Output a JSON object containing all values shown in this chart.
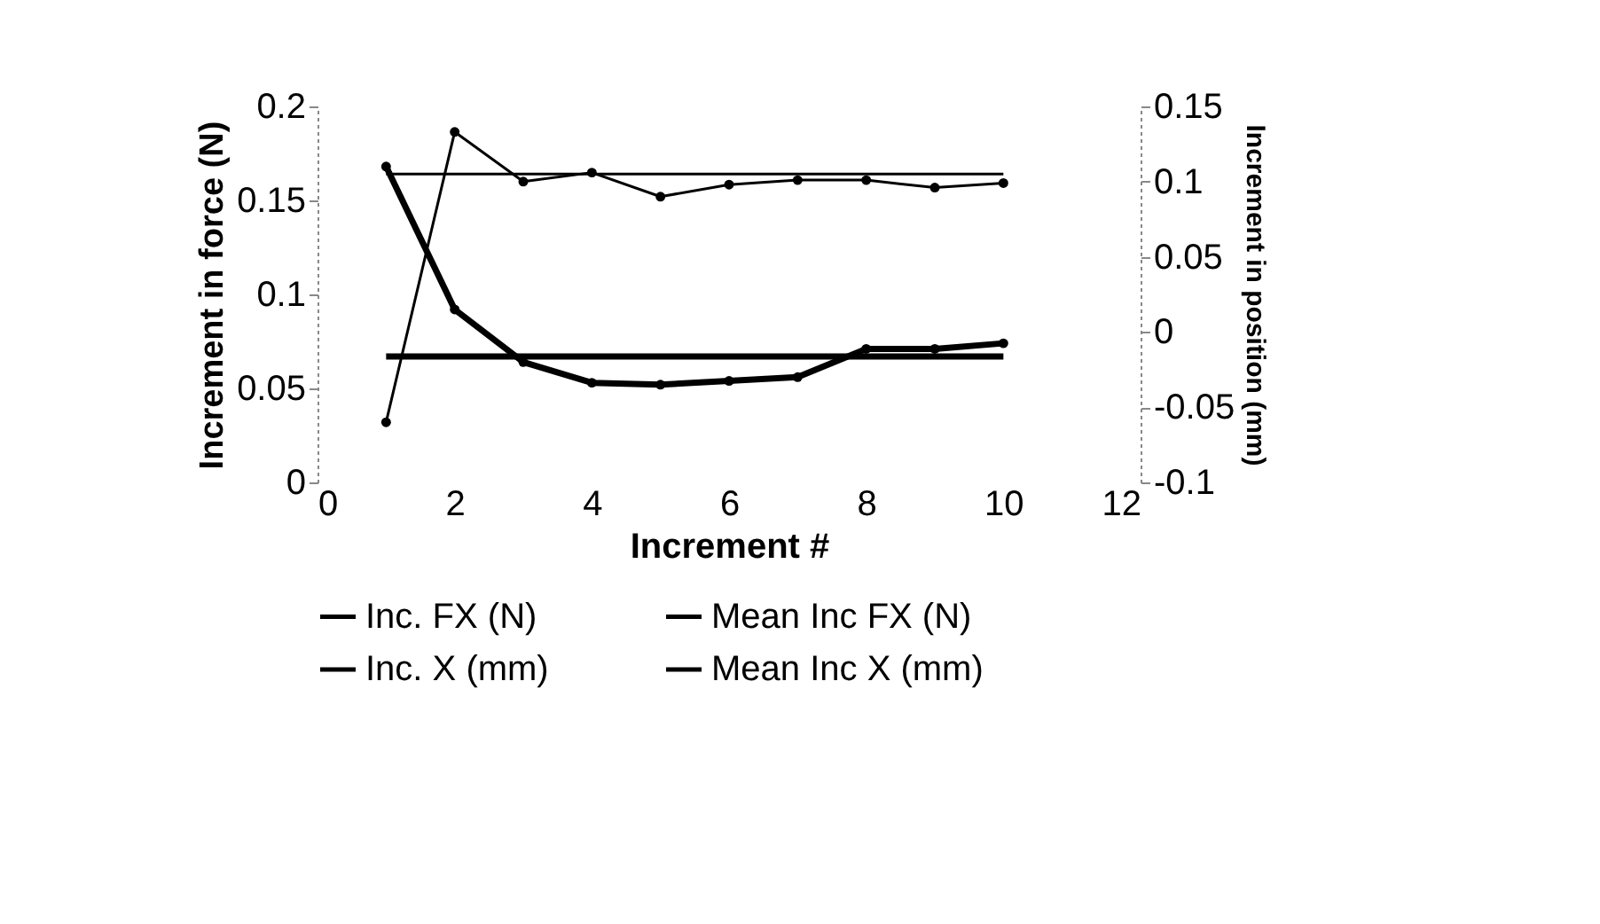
{
  "chart_data": {
    "type": "line",
    "xlabel": "Increment #",
    "ylabel": "Increment in force (N)",
    "y2label": "Increment in position (mm)",
    "x": [
      1,
      2,
      3,
      4,
      5,
      6,
      7,
      8,
      9,
      10
    ],
    "series": [
      {
        "name": "Inc. FX (N)",
        "color": "#000000",
        "marker": "circle",
        "values": [
          0.168,
          0.092,
          0.064,
          0.053,
          0.052,
          0.054,
          0.056,
          0.071,
          0.071,
          0.074
        ]
      },
      {
        "name": "Mean Inc FX (N)",
        "color": "#000000",
        "marker": "none",
        "values": [
          0.067,
          0.067,
          0.067,
          0.067,
          0.067,
          0.067,
          0.067,
          0.067,
          0.067,
          0.067
        ]
      },
      {
        "name": "Inc. X (mm)",
        "color": "#000000",
        "marker": "circle",
        "axis": "y2",
        "values": [
          -0.06,
          0.133,
          0.1,
          0.106,
          0.09,
          0.098,
          0.101,
          0.101,
          0.096,
          0.099
        ]
      },
      {
        "name": "Mean Inc X (mm)",
        "color": "#000000",
        "marker": "none",
        "axis": "y2",
        "values": [
          0.105,
          0.105,
          0.105,
          0.105,
          0.105,
          0.105,
          0.105,
          0.105,
          0.105,
          0.105
        ]
      }
    ],
    "xlim": [
      0,
      12
    ],
    "xticks": [
      0,
      2,
      4,
      6,
      8,
      10,
      12
    ],
    "ylim": [
      0,
      0.2
    ],
    "yticks": [
      0,
      0.05,
      0.1,
      0.15,
      0.2
    ],
    "y2lim": [
      -0.1,
      0.15
    ],
    "y2ticks": [
      -0.1,
      -0.05,
      0,
      0.05,
      0.1,
      0.15
    ],
    "grid": false,
    "legend": "bottom",
    "line_style": "solid"
  }
}
